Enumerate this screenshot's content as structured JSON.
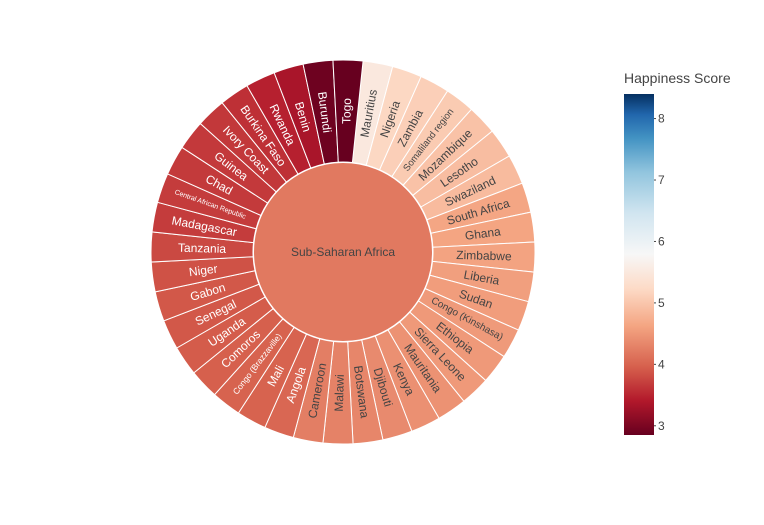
{
  "chart_data": {
    "type": "sunburst",
    "root": {
      "label": "Sub-Saharan Africa",
      "value": 4.2
    },
    "colorbar": {
      "title": "Happiness Score",
      "range": [
        2.85,
        8.4
      ],
      "ticks": [
        3,
        4,
        5,
        6,
        7,
        8
      ],
      "colorscale": "RdBu"
    },
    "countries": [
      {
        "label": "Mauritius",
        "value": 5.5
      },
      {
        "label": "Nigeria",
        "value": 5.2
      },
      {
        "label": "Zambia",
        "value": 5.1
      },
      {
        "label": "Somaliland region",
        "value": 5.05
      },
      {
        "label": "Mozambique",
        "value": 4.95
      },
      {
        "label": "Lesotho",
        "value": 4.9
      },
      {
        "label": "Swaziland",
        "value": 4.87
      },
      {
        "label": "South Africa",
        "value": 4.64
      },
      {
        "label": "Ghana",
        "value": 4.63
      },
      {
        "label": "Zimbabwe",
        "value": 4.61
      },
      {
        "label": "Liberia",
        "value": 4.57
      },
      {
        "label": "Sudan",
        "value": 4.55
      },
      {
        "label": "Congo (Kinshasa)",
        "value": 4.52
      },
      {
        "label": "Ethiopia",
        "value": 4.51
      },
      {
        "label": "Sierra Leone",
        "value": 4.51
      },
      {
        "label": "Mauritania",
        "value": 4.44
      },
      {
        "label": "Kenya",
        "value": 4.42
      },
      {
        "label": "Djibouti",
        "value": 4.37
      },
      {
        "label": "Botswana",
        "value": 4.33
      },
      {
        "label": "Malawi",
        "value": 4.29
      },
      {
        "label": "Cameroon",
        "value": 4.25
      },
      {
        "label": "Angola",
        "value": 4.03
      },
      {
        "label": "Mali",
        "value": 3.99
      },
      {
        "label": "Congo (Brazzaville)",
        "value": 3.99
      },
      {
        "label": "Comoros",
        "value": 3.96
      },
      {
        "label": "Uganda",
        "value": 3.93
      },
      {
        "label": "Senegal",
        "value": 3.9
      },
      {
        "label": "Gabon",
        "value": 3.9
      },
      {
        "label": "Niger",
        "value": 3.85
      },
      {
        "label": "Tanzania",
        "value": 3.78
      },
      {
        "label": "Madagascar",
        "value": 3.68
      },
      {
        "label": "Central African Republic",
        "value": 3.68
      },
      {
        "label": "Chad",
        "value": 3.67
      },
      {
        "label": "Guinea",
        "value": 3.66
      },
      {
        "label": "Ivory Coast",
        "value": 3.65
      },
      {
        "label": "Burkina Faso",
        "value": 3.59
      },
      {
        "label": "Rwanda",
        "value": 3.47
      },
      {
        "label": "Benin",
        "value": 3.34
      },
      {
        "label": "Burundi",
        "value": 2.9
      },
      {
        "label": "Togo",
        "value": 2.84
      }
    ]
  }
}
